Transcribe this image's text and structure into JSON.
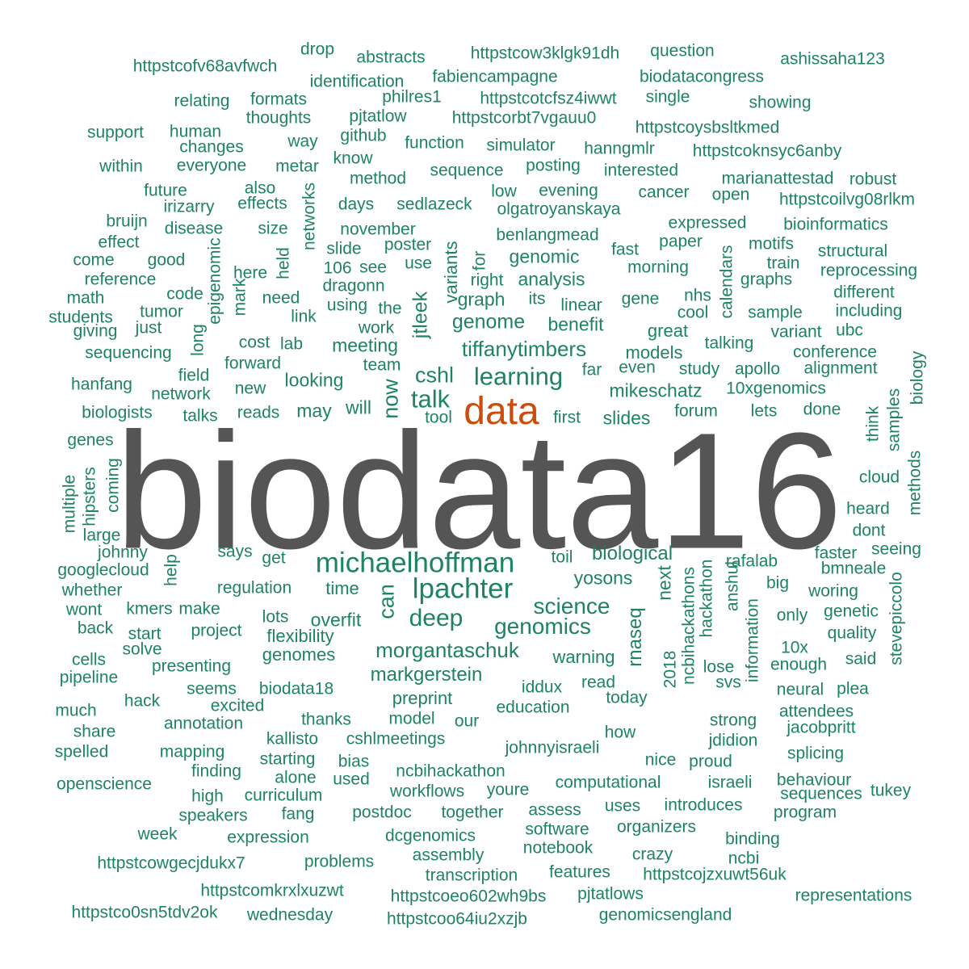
{
  "title": "biodata16 word cloud",
  "colors": {
    "primary": "#555555",
    "secondary": "#cc4c0c",
    "tertiary": "#1e8460"
  },
  "words": [
    "biodata16",
    "data",
    "michaelhoffman",
    "lpachter",
    "talk",
    "cshl",
    "learning",
    "deep",
    "genomics",
    "science",
    "now",
    "can",
    "jtleek",
    "tiffanytimbers",
    "morgantaschuk",
    "genome",
    "meeting",
    "markgerstein",
    "mikeschatz",
    "yosons",
    "biological",
    "rnaseq",
    "warning",
    "slides",
    "graph",
    "looking",
    "may",
    "will",
    "genomic",
    "analysis",
    "benefit",
    "great",
    "models",
    "linear",
    "variants",
    "overfit",
    "flexibility",
    "genomes",
    "education",
    "preprint",
    "iddux",
    "read",
    "model",
    "next",
    "forum",
    "time",
    "drop",
    "abstracts",
    "httpstcow3klgk91dh",
    "question",
    "ashissaha123",
    "httpstcofv68avfwch",
    "identification",
    "fabiencampagne",
    "biodatacongress",
    "relating",
    "formats",
    "philres1",
    "httpstcotcfsz4iwwt",
    "single",
    "showing",
    "thoughts",
    "pjtatlow",
    "httpstcorbt7vgauu0",
    "support",
    "human",
    "way",
    "github",
    "httpstcoysbsltkmed",
    "changes",
    "function",
    "simulator",
    "hanngmlr",
    "httpstcoknsyc6anby",
    "within",
    "everyone",
    "metar",
    "know",
    "posting",
    "interested",
    "sequence",
    "method",
    "marianattestad",
    "robust",
    "future",
    "also",
    "low",
    "evening",
    "cancer",
    "open",
    "httpstcoilvg08rlkm",
    "irizarry",
    "effects",
    "networks",
    "days",
    "sedlazeck",
    "olgatroyanskaya",
    "disease",
    "bruijn",
    "size",
    "november",
    "expressed",
    "bioinformatics",
    "effect",
    "held",
    "slide",
    "poster",
    "benlangmead",
    "paper",
    "fast",
    "motifs",
    "structural",
    "come",
    "good",
    "106",
    "see",
    "use",
    "for",
    "train",
    "reprocessing",
    "reference",
    "epigenomic",
    "here",
    "dragonn",
    "right",
    "morning",
    "graphs",
    "math",
    "code",
    "need",
    "using",
    "the",
    "its",
    "gene",
    "nhs",
    "different",
    "students",
    "tumor",
    "mark",
    "link",
    "calendars",
    "cool",
    "sample",
    "including",
    "giving",
    "just",
    "work",
    "variant",
    "ubc",
    "long",
    "sequencing",
    "cost",
    "lab",
    "talking",
    "conference",
    "forward",
    "team",
    "field",
    "even",
    "study",
    "apollo",
    "alignment",
    "hanfang",
    "far",
    "network",
    "new",
    "10xgenomics",
    "biology",
    "reads",
    "lets",
    "done",
    "biologists",
    "talks",
    "tool",
    "first",
    "think",
    "samples",
    "genes",
    "multiple",
    "hipsters",
    "coming",
    "cloud",
    "methods",
    "heard",
    "dont",
    "large",
    "johnny",
    "says",
    "get",
    "toil",
    "faster",
    "rafalab",
    "seeing",
    "googlecloud",
    "help",
    "bmneale",
    "regulation",
    "whether",
    "big",
    "woring",
    "make",
    "wont",
    "kmers",
    "lots",
    "anshul",
    "hackathon",
    "only",
    "genetic",
    "stevepiccolo",
    "back",
    "start",
    "project",
    "quality",
    "ncbihackathons",
    "information",
    "2018",
    "cells",
    "solve",
    "10x",
    "said",
    "lose",
    "enough",
    "presenting",
    "pipeline",
    "seems",
    "biodata18",
    "today",
    "svs",
    "neural",
    "plea",
    "hack",
    "excited",
    "much",
    "attendees",
    "thanks",
    "strong",
    "annotation",
    "jacobpritt",
    "share",
    "our",
    "how",
    "kallisto",
    "cshlmeetings",
    "jdidion",
    "mapping",
    "spelled",
    "johnnyisraeli",
    "splicing",
    "starting",
    "bias",
    "nice",
    "proud",
    "finding",
    "ncbihackathon",
    "alone",
    "used",
    "computational",
    "openscience",
    "israeli",
    "behaviour",
    "high",
    "curriculum",
    "workflows",
    "youre",
    "tukey",
    "sequences",
    "introduces",
    "assess",
    "uses",
    "fang",
    "speakers",
    "postdoc",
    "together",
    "program",
    "week",
    "software",
    "organizers",
    "expression",
    "dcgenomics",
    "binding",
    "notebook",
    "crazy",
    "assembly",
    "ncbi",
    "httpstcowgecjdukx7",
    "problems",
    "transcription",
    "features",
    "httpstcojzxuwt56uk",
    "httpstcomkrxlxuzwt",
    "httpstcoeo602wh9bs",
    "pjtatlows",
    "representations",
    "httpstco0sn5tdv2ok",
    "wednesday",
    "httpstcoo64iu2xzjb",
    "genomicsengland"
  ]
}
